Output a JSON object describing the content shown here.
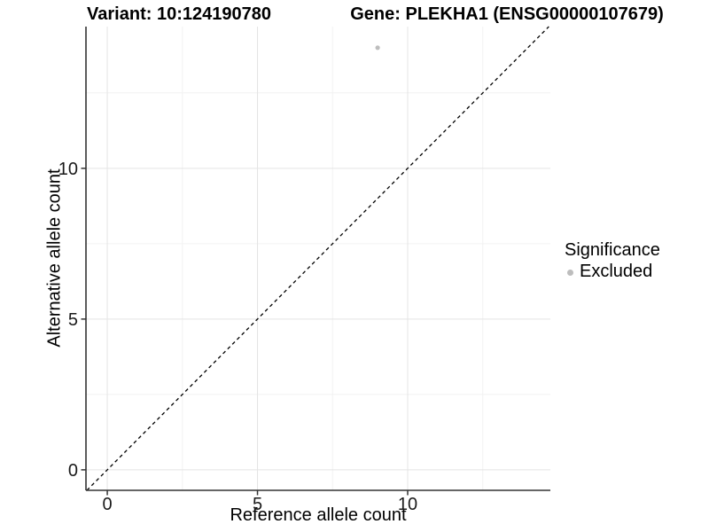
{
  "chart_data": {
    "type": "scatter",
    "title_left": "Variant: 10:124190780",
    "title_right": "Gene: PLEKHA1 (ENSG00000107679)",
    "xlabel": "Reference allele count",
    "ylabel": "Alternative allele count",
    "xlim": [
      -0.71,
      14.75
    ],
    "ylim": [
      -0.68,
      14.7
    ],
    "x_ticks": [
      0,
      5,
      10
    ],
    "y_ticks": [
      0,
      5,
      10
    ],
    "x_minor": [
      2.5,
      7.5,
      12.5
    ],
    "y_minor": [
      2.5,
      7.5,
      12.5
    ],
    "grid": {
      "major_color": "#e4e4e4",
      "minor_color": "#f2f2f2",
      "on": true
    },
    "axis_color": "#333333",
    "tick_label_color": "#1a1a1a",
    "reference_line": {
      "type": "identity",
      "style": "dashed",
      "color": "#000000"
    },
    "series": [
      {
        "name": "Excluded",
        "color": "#bdbdbd",
        "points": [
          {
            "x": 9,
            "y": 14
          }
        ]
      }
    ],
    "legend": {
      "title": "Significance",
      "position": "right",
      "entries": [
        {
          "label": "Excluded",
          "color": "#bdbdbd"
        }
      ]
    }
  }
}
